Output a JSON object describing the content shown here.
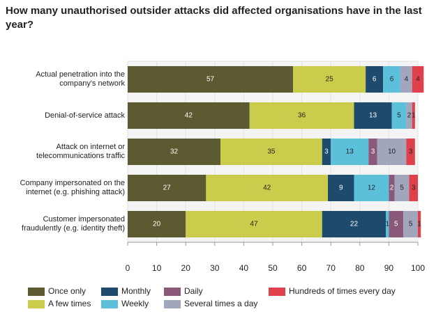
{
  "chart_data": {
    "type": "stacked-bar-horizontal",
    "title": "How many unauthorised outsider attacks did affected organisations have in the last year?",
    "categories": [
      "Actual penetration into the company's network",
      "Denial-of-service attack",
      "Attack on internet or telecommunications traffic",
      "Company impersonated on the internet (e.g. phishing attack)",
      "Customer impersonated fraudulently (e.g. identity theft)"
    ],
    "series": [
      {
        "name": "Once only",
        "color": "#5b5a30",
        "values": [
          57,
          42,
          32,
          27,
          20
        ]
      },
      {
        "name": "A few times",
        "color": "#cccc4c",
        "values": [
          25,
          36,
          35,
          42,
          47
        ]
      },
      {
        "name": "Monthly",
        "color": "#1e4a6e",
        "values": [
          6,
          13,
          3,
          9,
          22
        ]
      },
      {
        "name": "Weekly",
        "color": "#5cc0da",
        "values": [
          6,
          5,
          13,
          12,
          1
        ]
      },
      {
        "name": "Daily",
        "color": "#8a5878",
        "values": [
          null,
          null,
          3,
          2,
          5
        ]
      },
      {
        "name": "Several times a day",
        "color": "#a2a6bc",
        "values": [
          4,
          2,
          10,
          5,
          5
        ]
      },
      {
        "name": "Hundreds of times every day",
        "color": "#e0404c",
        "values": [
          4,
          1,
          3,
          3,
          1
        ]
      }
    ],
    "xlim": [
      0,
      100
    ],
    "xticks": [
      0,
      10,
      20,
      30,
      40,
      50,
      60,
      70,
      80,
      90,
      100
    ],
    "grid": true
  }
}
